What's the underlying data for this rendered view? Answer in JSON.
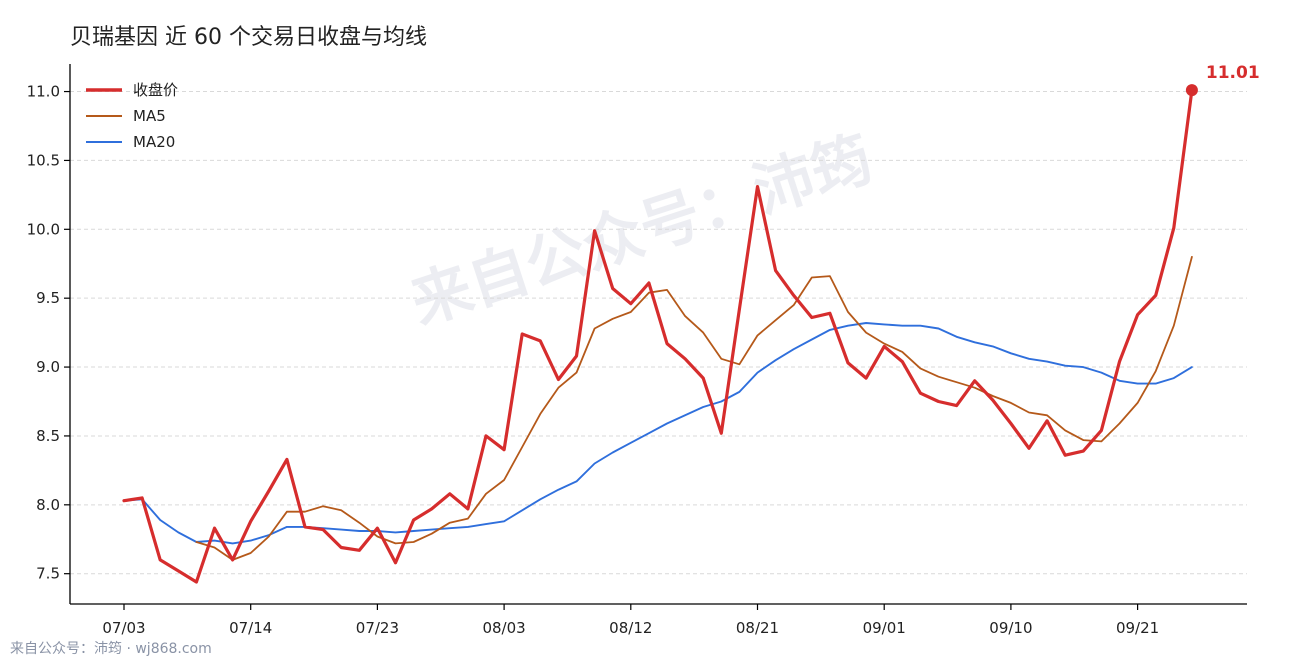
{
  "title": "贝瑞基因 近 60 个交易日收盘与均线",
  "watermark": "来自公众号：沛筠",
  "footer": "来自公众号：沛筠 · wj868.com",
  "colors": {
    "close": "#d62d2d",
    "ma5": "#b5591a",
    "ma20": "#2f6fdc",
    "grid": "#d9d9d9"
  },
  "chart_data": {
    "type": "line",
    "title": "贝瑞基因 近 60 个交易日收盘与均线",
    "xlabel": "",
    "ylabel": "",
    "ylim": [
      7.28,
      11.2
    ],
    "yticks": [
      "7.5",
      "8.0",
      "8.5",
      "9.0",
      "9.5",
      "10.0",
      "10.5",
      "11.0"
    ],
    "x_ticks": [
      {
        "label": "07/03",
        "index": 0
      },
      {
        "label": "07/14",
        "index": 7
      },
      {
        "label": "07/23",
        "index": 14
      },
      {
        "label": "08/03",
        "index": 21
      },
      {
        "label": "08/12",
        "index": 28
      },
      {
        "label": "08/21",
        "index": 35
      },
      {
        "label": "09/01",
        "index": 42
      },
      {
        "label": "09/10",
        "index": 49
      },
      {
        "label": "09/21",
        "index": 56
      }
    ],
    "grid": "horizontal dashed",
    "legend_position": "top-left",
    "series": [
      {
        "name": "收盘价",
        "values": [
          8.03,
          8.05,
          7.6,
          7.52,
          7.44,
          7.83,
          7.6,
          7.88,
          8.1,
          8.33,
          7.84,
          7.82,
          7.69,
          7.67,
          7.83,
          7.58,
          7.89,
          7.97,
          8.08,
          7.97,
          8.5,
          8.4,
          9.24,
          9.19,
          8.91,
          9.08,
          9.99,
          9.57,
          9.46,
          9.61,
          9.17,
          9.06,
          8.92,
          8.52,
          9.42,
          10.31,
          9.7,
          9.52,
          9.36,
          9.39,
          9.03,
          8.92,
          9.15,
          9.04,
          8.81,
          8.75,
          8.72,
          8.9,
          8.76,
          8.59,
          8.41,
          8.61,
          8.36,
          8.39,
          8.54,
          9.04,
          9.38,
          9.52,
          10.01,
          11.01
        ]
      },
      {
        "name": "MA5",
        "start_index": 4,
        "values": [
          7.73,
          7.69,
          7.6,
          7.65,
          7.77,
          7.95,
          7.95,
          7.99,
          7.96,
          7.87,
          7.77,
          7.72,
          7.73,
          7.79,
          7.87,
          7.9,
          8.08,
          8.18,
          8.42,
          8.66,
          8.85,
          8.96,
          9.28,
          9.35,
          9.4,
          9.54,
          9.56,
          9.37,
          9.25,
          9.06,
          9.02,
          9.23,
          9.34,
          9.45,
          9.65,
          9.66,
          9.4,
          9.25,
          9.17,
          9.11,
          8.99,
          8.93,
          8.89,
          8.85,
          8.79,
          8.74,
          8.67,
          8.65,
          8.54,
          8.47,
          8.46,
          8.59,
          8.74,
          8.97,
          9.3,
          9.8
        ]
      },
      {
        "name": "MA20",
        "values": [
          8.03,
          8.04,
          7.89,
          7.8,
          7.73,
          7.74,
          7.72,
          7.74,
          7.78,
          7.84,
          7.84,
          7.83,
          7.82,
          7.81,
          7.81,
          7.8,
          7.81,
          7.82,
          7.83,
          7.84,
          7.86,
          7.88,
          7.96,
          8.04,
          8.11,
          8.17,
          8.3,
          8.38,
          8.45,
          8.52,
          8.59,
          8.65,
          8.71,
          8.75,
          8.82,
          8.96,
          9.05,
          9.13,
          9.2,
          9.27,
          9.3,
          9.32,
          9.31,
          9.3,
          9.3,
          9.28,
          9.22,
          9.18,
          9.15,
          9.1,
          9.06,
          9.04,
          9.01,
          9.0,
          8.96,
          8.9,
          8.88,
          8.88,
          8.92,
          9.0
        ]
      }
    ],
    "end_label": "11.01"
  }
}
